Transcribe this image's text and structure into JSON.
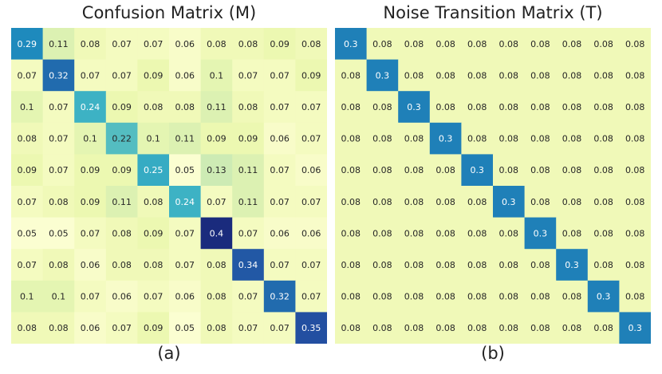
{
  "chart_data": [
    {
      "type": "heatmap",
      "title": "Confusion Matrix (M)",
      "caption": "(a)",
      "rows": 10,
      "cols": 10,
      "values": [
        [
          0.29,
          0.11,
          0.08,
          0.07,
          0.07,
          0.06,
          0.08,
          0.08,
          0.09,
          0.08
        ],
        [
          0.07,
          0.32,
          0.07,
          0.07,
          0.09,
          0.06,
          0.1,
          0.07,
          0.07,
          0.09
        ],
        [
          0.1,
          0.07,
          0.24,
          0.09,
          0.08,
          0.08,
          0.11,
          0.08,
          0.07,
          0.07
        ],
        [
          0.08,
          0.07,
          0.1,
          0.22,
          0.1,
          0.11,
          0.09,
          0.09,
          0.06,
          0.07
        ],
        [
          0.09,
          0.07,
          0.09,
          0.09,
          0.25,
          0.05,
          0.13,
          0.11,
          0.07,
          0.06
        ],
        [
          0.07,
          0.08,
          0.09,
          0.11,
          0.08,
          0.24,
          0.07,
          0.11,
          0.07,
          0.07
        ],
        [
          0.05,
          0.05,
          0.07,
          0.08,
          0.09,
          0.07,
          0.4,
          0.07,
          0.06,
          0.06
        ],
        [
          0.07,
          0.08,
          0.06,
          0.08,
          0.08,
          0.07,
          0.08,
          0.34,
          0.07,
          0.07
        ],
        [
          0.1,
          0.1,
          0.07,
          0.06,
          0.07,
          0.06,
          0.08,
          0.07,
          0.32,
          0.07
        ],
        [
          0.08,
          0.08,
          0.06,
          0.07,
          0.09,
          0.05,
          0.08,
          0.07,
          0.07,
          0.35
        ]
      ],
      "labels": [
        [
          "0.29",
          "0.11",
          "0.08",
          "0.07",
          "0.07",
          "0.06",
          "0.08",
          "0.08",
          "0.09",
          "0.08"
        ],
        [
          "0.07",
          "0.32",
          "0.07",
          "0.07",
          "0.09",
          "0.06",
          "0.1",
          "0.07",
          "0.07",
          "0.09"
        ],
        [
          "0.1",
          "0.07",
          "0.24",
          "0.09",
          "0.08",
          "0.08",
          "0.11",
          "0.08",
          "0.07",
          "0.07"
        ],
        [
          "0.08",
          "0.07",
          "0.1",
          "0.22",
          "0.1",
          "0.11",
          "0.09",
          "0.09",
          "0.06",
          "0.07"
        ],
        [
          "0.09",
          "0.07",
          "0.09",
          "0.09",
          "0.25",
          "0.05",
          "0.13",
          "0.11",
          "0.07",
          "0.06"
        ],
        [
          "0.07",
          "0.08",
          "0.09",
          "0.11",
          "0.08",
          "0.24",
          "0.07",
          "0.11",
          "0.07",
          "0.07"
        ],
        [
          "0.05",
          "0.05",
          "0.07",
          "0.08",
          "0.09",
          "0.07",
          "0.4",
          "0.07",
          "0.06",
          "0.06"
        ],
        [
          "0.07",
          "0.08",
          "0.06",
          "0.08",
          "0.08",
          "0.07",
          "0.08",
          "0.34",
          "0.07",
          "0.07"
        ],
        [
          "0.1",
          "0.1",
          "0.07",
          "0.06",
          "0.07",
          "0.06",
          "0.08",
          "0.07",
          "0.32",
          "0.07"
        ],
        [
          "0.08",
          "0.08",
          "0.06",
          "0.07",
          "0.09",
          "0.05",
          "0.08",
          "0.07",
          "0.07",
          "0.35"
        ]
      ],
      "colormap": "YlGnBu",
      "vmin": 0.04,
      "vmax": 0.43,
      "grid": false
    },
    {
      "type": "heatmap",
      "title": "Noise Transition Matrix (T)",
      "caption": "(b)",
      "rows": 10,
      "cols": 10,
      "diagonal_value": 0.3,
      "off_diagonal_value": 0.08,
      "diagonal_label": "0.3",
      "off_diagonal_label": "0.08",
      "colormap": "YlGnBu",
      "vmin": 0.04,
      "vmax": 0.43,
      "grid": false
    }
  ]
}
